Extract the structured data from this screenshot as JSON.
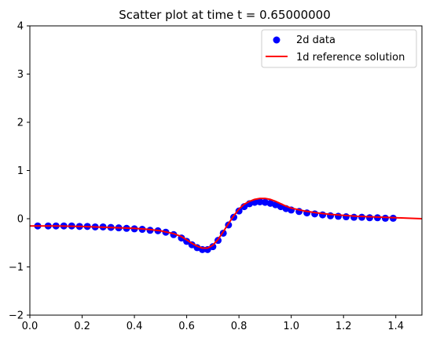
{
  "chart_data": {
    "type": "scatter",
    "title": "Scatter plot at time t =      0.65000000",
    "xlabel": "",
    "ylabel": "",
    "xlim": [
      0.0,
      1.5
    ],
    "ylim": [
      -2,
      4
    ],
    "x_ticks": [
      "0.0",
      "0.2",
      "0.4",
      "0.6",
      "0.8",
      "1.0",
      "1.2",
      "1.4"
    ],
    "x_tick_values": [
      0.0,
      0.2,
      0.4,
      0.6,
      0.8,
      1.0,
      1.2,
      1.4
    ],
    "y_ticks": [
      "−2",
      "−1",
      "0",
      "1",
      "2",
      "3",
      "4"
    ],
    "y_tick_values": [
      -2,
      -1,
      0,
      1,
      2,
      3,
      4
    ],
    "grid": false,
    "legend_position": "top-right",
    "series": [
      {
        "name": "2d data",
        "kind": "scatter",
        "color": "#0000ff",
        "marker": "circle",
        "points": [
          [
            0.03,
            -0.15
          ],
          [
            0.07,
            -0.15
          ],
          [
            0.1,
            -0.15
          ],
          [
            0.13,
            -0.15
          ],
          [
            0.16,
            -0.15
          ],
          [
            0.19,
            -0.16
          ],
          [
            0.22,
            -0.16
          ],
          [
            0.25,
            -0.17
          ],
          [
            0.28,
            -0.17
          ],
          [
            0.31,
            -0.18
          ],
          [
            0.34,
            -0.19
          ],
          [
            0.37,
            -0.2
          ],
          [
            0.4,
            -0.21
          ],
          [
            0.43,
            -0.22
          ],
          [
            0.46,
            -0.24
          ],
          [
            0.49,
            -0.25
          ],
          [
            0.52,
            -0.28
          ],
          [
            0.55,
            -0.33
          ],
          [
            0.58,
            -0.4
          ],
          [
            0.6,
            -0.47
          ],
          [
            0.62,
            -0.54
          ],
          [
            0.64,
            -0.6
          ],
          [
            0.66,
            -0.64
          ],
          [
            0.68,
            -0.64
          ],
          [
            0.7,
            -0.58
          ],
          [
            0.72,
            -0.45
          ],
          [
            0.74,
            -0.3
          ],
          [
            0.76,
            -0.13
          ],
          [
            0.78,
            0.03
          ],
          [
            0.8,
            0.16
          ],
          [
            0.82,
            0.25
          ],
          [
            0.84,
            0.31
          ],
          [
            0.86,
            0.34
          ],
          [
            0.88,
            0.35
          ],
          [
            0.9,
            0.34
          ],
          [
            0.92,
            0.32
          ],
          [
            0.94,
            0.29
          ],
          [
            0.96,
            0.25
          ],
          [
            0.98,
            0.21
          ],
          [
            1.0,
            0.18
          ],
          [
            1.03,
            0.15
          ],
          [
            1.06,
            0.12
          ],
          [
            1.09,
            0.1
          ],
          [
            1.12,
            0.08
          ],
          [
            1.15,
            0.06
          ],
          [
            1.18,
            0.05
          ],
          [
            1.21,
            0.04
          ],
          [
            1.24,
            0.03
          ],
          [
            1.27,
            0.03
          ],
          [
            1.3,
            0.02
          ],
          [
            1.33,
            0.02
          ],
          [
            1.36,
            0.01
          ],
          [
            1.39,
            0.01
          ]
        ]
      },
      {
        "name": "1d reference solution",
        "kind": "line",
        "color": "#ff0000",
        "points": [
          [
            0.0,
            -0.15
          ],
          [
            0.1,
            -0.15
          ],
          [
            0.2,
            -0.16
          ],
          [
            0.3,
            -0.18
          ],
          [
            0.4,
            -0.2
          ],
          [
            0.45,
            -0.22
          ],
          [
            0.5,
            -0.25
          ],
          [
            0.55,
            -0.31
          ],
          [
            0.58,
            -0.37
          ],
          [
            0.6,
            -0.44
          ],
          [
            0.62,
            -0.51
          ],
          [
            0.64,
            -0.57
          ],
          [
            0.66,
            -0.61
          ],
          [
            0.68,
            -0.61
          ],
          [
            0.7,
            -0.55
          ],
          [
            0.72,
            -0.43
          ],
          [
            0.74,
            -0.27
          ],
          [
            0.76,
            -0.1
          ],
          [
            0.78,
            0.06
          ],
          [
            0.8,
            0.2
          ],
          [
            0.82,
            0.3
          ],
          [
            0.84,
            0.36
          ],
          [
            0.86,
            0.4
          ],
          [
            0.88,
            0.42
          ],
          [
            0.9,
            0.42
          ],
          [
            0.92,
            0.4
          ],
          [
            0.94,
            0.36
          ],
          [
            0.96,
            0.31
          ],
          [
            0.98,
            0.26
          ],
          [
            1.0,
            0.22
          ],
          [
            1.05,
            0.16
          ],
          [
            1.1,
            0.12
          ],
          [
            1.15,
            0.09
          ],
          [
            1.2,
            0.07
          ],
          [
            1.25,
            0.05
          ],
          [
            1.3,
            0.04
          ],
          [
            1.35,
            0.03
          ],
          [
            1.4,
            0.02
          ],
          [
            1.45,
            0.01
          ],
          [
            1.5,
            0.0
          ]
        ]
      }
    ]
  }
}
